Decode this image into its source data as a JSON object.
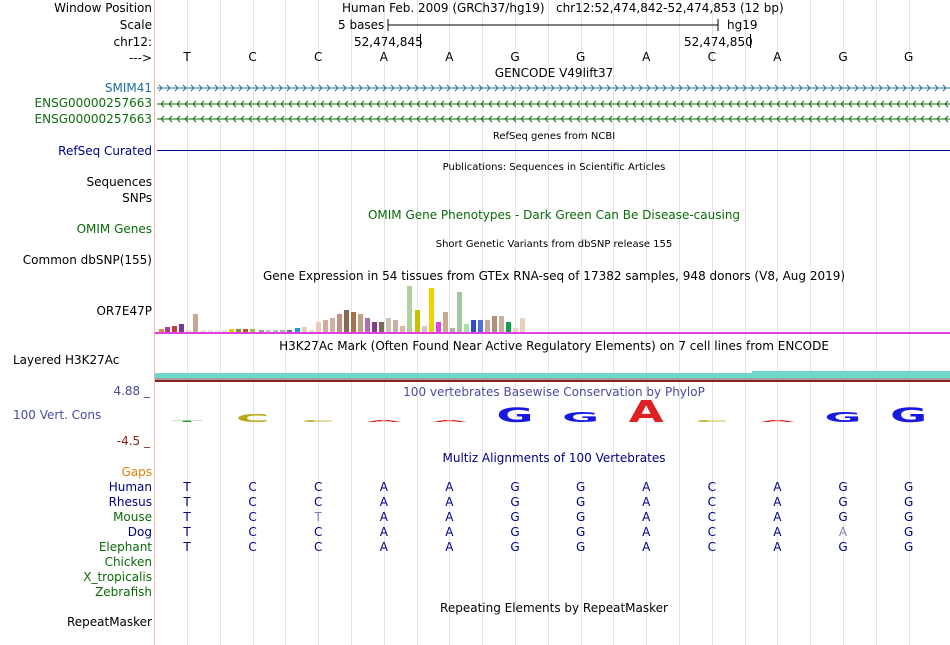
{
  "labels": {
    "window_position": "Window Position",
    "scale": "Scale",
    "chrom": "chr12:",
    "arrow": "--->",
    "smim41": "SMIM41",
    "ensg1": "ENSG00000257663",
    "ensg2": "ENSG00000257663",
    "refseq": "RefSeq Curated",
    "sequences": "Sequences",
    "snps": "SNPs",
    "omim": "OMIM Genes",
    "common_dbsnp": "Common dbSNP(155)",
    "or7e47p": "OR7E47P",
    "h3k27ac": "Layered H3K27Ac",
    "cons_max": "4.88 _",
    "vert_cons": "100 Vert. Cons",
    "cons_min": "-4.5 _",
    "gaps": "Gaps",
    "species": [
      "Human",
      "Rhesus",
      "Mouse",
      "Dog",
      "Elephant",
      "Chicken",
      "X_tropicalis",
      "Zebrafish"
    ],
    "repeatmasker": "RepeatMasker"
  },
  "header": {
    "assembly": "Human Feb. 2009 (GRCh37/hg19)",
    "position": "chr12:52,474,842-52,474,853 (12 bp)",
    "scale_label": "5 bases",
    "db": "hg19",
    "coord1": "52,474,845",
    "coord2": "52,474,850"
  },
  "bases": [
    "T",
    "C",
    "C",
    "A",
    "A",
    "G",
    "G",
    "A",
    "C",
    "A",
    "G",
    "G"
  ],
  "track_titles": {
    "gencode": "GENCODE V49lift37",
    "refseq": "RefSeq genes from NCBI",
    "publications": "Publications: Sequences in Scientific Articles",
    "omim": "OMIM Gene Phenotypes - Dark Green Can Be Disease-causing",
    "dbsnp": "Short Genetic Variants from dbSNP release 155",
    "gtex": "Gene Expression in 54 tissues from GTEx RNA-seq of 17382 samples, 948 donors (V8, Aug 2019)",
    "h3k27ac": "H3K27Ac Mark (Often Found Near Active Regulatory Elements) on 7 cell lines from ENCODE",
    "phylop": "100 vertebrates Basewise Conservation by PhyloP",
    "multiz": "Multiz Alignments of 100 Vertebrates",
    "repeat": "Repeating Elements by RepeatMasker"
  },
  "alignment": {
    "Human": [
      "T",
      "C",
      "C",
      "A",
      "A",
      "G",
      "G",
      "A",
      "C",
      "A",
      "G",
      "G"
    ],
    "Rhesus": [
      "T",
      "C",
      "C",
      "A",
      "A",
      "G",
      "G",
      "A",
      "C",
      "A",
      "G",
      "G"
    ],
    "Mouse": [
      "T",
      "C",
      "T",
      "A",
      "A",
      "G",
      "G",
      "A",
      "C",
      "A",
      "G",
      "G"
    ],
    "Dog": [
      "T",
      "C",
      "C",
      "A",
      "A",
      "G",
      "G",
      "A",
      "C",
      "A",
      "A",
      "G"
    ],
    "Elephant": [
      "T",
      "C",
      "C",
      "A",
      "A",
      "G",
      "G",
      "A",
      "C",
      "A",
      "G",
      "G"
    ]
  },
  "colors": {
    "label_blue": "#000080",
    "green": "#0a6a0a",
    "smim_blue": "#2070a0",
    "ensg_green": "#0e6e0e",
    "gaps_orange": "#e08000",
    "cons_blue": "#4a4aa0",
    "h3k27ac_teal": "#70d8c8",
    "gtex_baseline": "#e040e0"
  }
}
